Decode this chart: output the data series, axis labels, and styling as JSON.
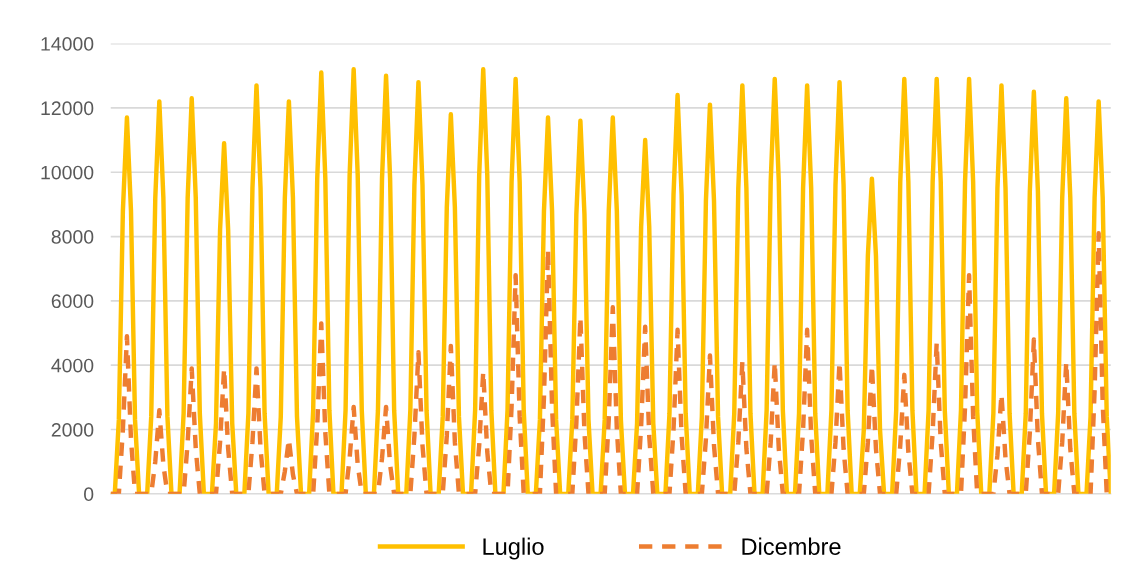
{
  "chart_data": {
    "type": "line",
    "categories": [
      null,
      null,
      null,
      null,
      null,
      null,
      null,
      null,
      null,
      null,
      null,
      null,
      null,
      null,
      null,
      null,
      null,
      null,
      null,
      null,
      null,
      null,
      null,
      null,
      null,
      null,
      null,
      null,
      null,
      null,
      null,
      null,
      null,
      null,
      null,
      null,
      null,
      null,
      null,
      null,
      null,
      null,
      null,
      null,
      null,
      null,
      null,
      null,
      null,
      null,
      null,
      null,
      null,
      null,
      null,
      null,
      null,
      null,
      null,
      null,
      null,
      null,
      null,
      null,
      null,
      null,
      null,
      null,
      null,
      null,
      null,
      null,
      null,
      null,
      null,
      null,
      null,
      null,
      null,
      null,
      null,
      null,
      null,
      null,
      null,
      null,
      null,
      null,
      null,
      null,
      null,
      null,
      null,
      null,
      null,
      null,
      null,
      null,
      null,
      null,
      null,
      null,
      null,
      null,
      null,
      null,
      null,
      null,
      null,
      null,
      null,
      null,
      null,
      null,
      null,
      null,
      null,
      null,
      null,
      null,
      null,
      null,
      null,
      null,
      null,
      null,
      null,
      null,
      null,
      null,
      null,
      null,
      null,
      null,
      null,
      null,
      null,
      null,
      null,
      null,
      null,
      null,
      null,
      null,
      null,
      null,
      null,
      null,
      null,
      null,
      null,
      null,
      null,
      null,
      null,
      null,
      null,
      null,
      null,
      null,
      null,
      null,
      null,
      null,
      null,
      null,
      null,
      null,
      null,
      null,
      null,
      null,
      null,
      null,
      null,
      null,
      null,
      null,
      null,
      null,
      null,
      null,
      null,
      null,
      null,
      null,
      null,
      null,
      null,
      null,
      null,
      null,
      null,
      null,
      null,
      null,
      null,
      null,
      null,
      null,
      null,
      null,
      null,
      null,
      null,
      null,
      null,
      null,
      null,
      null,
      null,
      null,
      null,
      null,
      null,
      null,
      null,
      null,
      null,
      null,
      null,
      null,
      null,
      null,
      null,
      null,
      null,
      null,
      null,
      null,
      null,
      null,
      null,
      null,
      null,
      null,
      null,
      null,
      null,
      null,
      null,
      null,
      null,
      null,
      null,
      null,
      null,
      null
    ],
    "series": [
      {
        "name": "Luglio",
        "color": "#ffc000",
        "line_style": "solid",
        "values": [
          0,
          0,
          2300,
          8800,
          11700,
          8800,
          2300,
          0,
          0,
          0,
          2400,
          9200,
          12200,
          9200,
          2400,
          0,
          0,
          0,
          2500,
          9200,
          12300,
          9200,
          2500,
          0,
          0,
          0,
          2200,
          8200,
          10900,
          8200,
          2200,
          0,
          0,
          0,
          2500,
          9500,
          12700,
          9500,
          2500,
          0,
          0,
          0,
          2400,
          9200,
          12200,
          9200,
          2400,
          0,
          0,
          0,
          2600,
          9800,
          13100,
          9800,
          2600,
          0,
          0,
          0,
          2600,
          9900,
          13200,
          9900,
          2600,
          0,
          0,
          0,
          2600,
          9800,
          13000,
          9800,
          2600,
          0,
          0,
          0,
          2600,
          9600,
          12800,
          9600,
          2600,
          0,
          0,
          0,
          2400,
          8900,
          11800,
          8900,
          2400,
          0,
          0,
          0,
          2600,
          9900,
          13200,
          9900,
          2600,
          0,
          0,
          0,
          2600,
          9700,
          12900,
          9700,
          2600,
          0,
          0,
          0,
          2300,
          8800,
          11700,
          8800,
          2300,
          0,
          0,
          0,
          2300,
          8700,
          11600,
          8700,
          2300,
          0,
          0,
          0,
          2300,
          8800,
          11700,
          8800,
          2300,
          0,
          0,
          0,
          2200,
          8300,
          11000,
          8300,
          2200,
          0,
          0,
          0,
          2500,
          9300,
          12400,
          9300,
          2500,
          0,
          0,
          0,
          2400,
          9100,
          12100,
          9100,
          2400,
          0,
          0,
          0,
          2500,
          9500,
          12700,
          9500,
          2500,
          0,
          0,
          0,
          2600,
          9700,
          12900,
          9700,
          2600,
          0,
          0,
          0,
          2500,
          9500,
          12700,
          9500,
          2500,
          0,
          0,
          0,
          2600,
          9600,
          12800,
          9600,
          2600,
          0,
          0,
          0,
          2000,
          7400,
          9800,
          7400,
          2000,
          0,
          0,
          0,
          2600,
          9700,
          12900,
          9700,
          2600,
          0,
          0,
          0,
          2600,
          9700,
          12900,
          9700,
          2600,
          0,
          0,
          0,
          2600,
          9700,
          12900,
          9700,
          2600,
          0,
          0,
          0,
          2500,
          9500,
          12700,
          9500,
          2500,
          0,
          0,
          0,
          2500,
          9400,
          12500,
          9400,
          2500,
          0,
          0,
          0,
          2500,
          9200,
          12300,
          9200,
          2500,
          0,
          0,
          0,
          2400,
          9200,
          12200,
          9200,
          2400,
          0
        ]
      },
      {
        "name": "Dicembre",
        "color": "#ed7d31",
        "line_style": "dashed",
        "values": [
          0,
          0,
          0,
          2000,
          4900,
          1700,
          0,
          0,
          0,
          0,
          0,
          1000,
          2600,
          900,
          0,
          0,
          0,
          0,
          0,
          1600,
          3900,
          1400,
          0,
          0,
          0,
          0,
          0,
          1600,
          3900,
          1400,
          0,
          0,
          0,
          0,
          0,
          1600,
          3900,
          1400,
          0,
          0,
          0,
          0,
          0,
          700,
          1700,
          600,
          0,
          0,
          0,
          0,
          0,
          2100,
          5300,
          1900,
          0,
          0,
          0,
          0,
          0,
          1100,
          2700,
          900,
          0,
          0,
          0,
          0,
          0,
          1100,
          2700,
          900,
          0,
          0,
          0,
          0,
          0,
          1800,
          4400,
          1500,
          0,
          0,
          0,
          0,
          0,
          1800,
          4600,
          1600,
          0,
          0,
          0,
          0,
          0,
          1500,
          3800,
          1300,
          0,
          0,
          0,
          0,
          0,
          2700,
          6800,
          2400,
          0,
          0,
          0,
          0,
          0,
          3000,
          7600,
          2700,
          0,
          0,
          0,
          0,
          0,
          2200,
          5500,
          1900,
          0,
          0,
          0,
          0,
          0,
          2300,
          5800,
          2000,
          0,
          0,
          0,
          0,
          0,
          2100,
          5200,
          1800,
          0,
          0,
          0,
          0,
          0,
          2000,
          5100,
          1800,
          0,
          0,
          0,
          0,
          0,
          1700,
          4300,
          1500,
          0,
          0,
          0,
          0,
          0,
          1600,
          4100,
          1400,
          0,
          0,
          0,
          0,
          0,
          1600,
          4100,
          1400,
          0,
          0,
          0,
          0,
          0,
          2000,
          5100,
          1800,
          0,
          0,
          0,
          0,
          0,
          1600,
          4100,
          1400,
          0,
          0,
          0,
          0,
          0,
          1600,
          4000,
          1400,
          0,
          0,
          0,
          0,
          0,
          1500,
          3700,
          1300,
          0,
          0,
          0,
          0,
          0,
          1900,
          4700,
          1600,
          0,
          0,
          0,
          0,
          0,
          2700,
          6800,
          2400,
          0,
          0,
          0,
          0,
          0,
          1200,
          3100,
          1100,
          0,
          0,
          0,
          0,
          0,
          1900,
          4800,
          1700,
          0,
          0,
          0,
          0,
          0,
          1600,
          4100,
          1400,
          0,
          0,
          0,
          0,
          0,
          3200,
          8100,
          2800,
          0,
          0
        ]
      }
    ],
    "ylim": [
      0,
      14000
    ],
    "yticks": [
      0,
      2000,
      4000,
      6000,
      8000,
      10000,
      12000,
      14000
    ],
    "grid": "y",
    "legend": "bottom",
    "marker": "none",
    "tick_labels": "y"
  }
}
